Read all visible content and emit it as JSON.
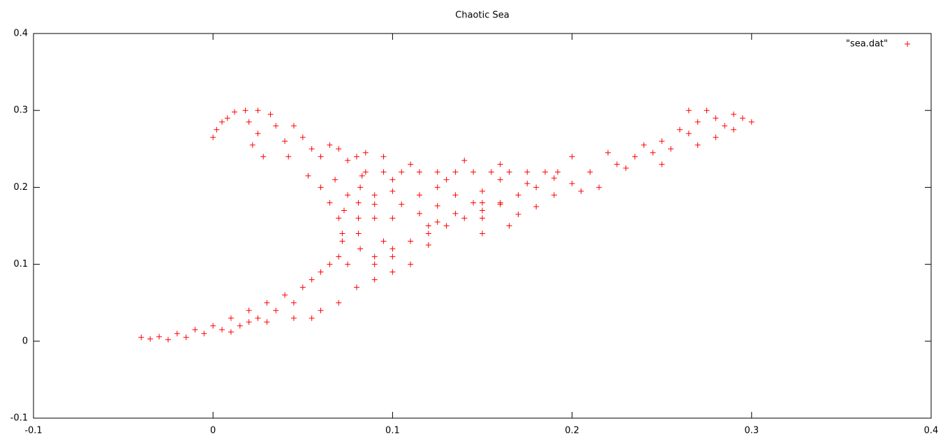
{
  "chart_data": {
    "type": "scatter",
    "title": "Chaotic Sea",
    "xlim": [
      -0.1,
      0.4
    ],
    "ylim": [
      -0.1,
      0.4
    ],
    "xticks": [
      -0.1,
      0,
      0.1,
      0.2,
      0.3,
      0.4
    ],
    "yticks": [
      -0.1,
      0,
      0.1,
      0.2,
      0.3,
      0.4
    ],
    "legend": "upper right",
    "marker": "+",
    "series": [
      {
        "name": "\"sea.dat\"",
        "color": "#ff0000",
        "x": [
          0.085,
          0.095,
          0.105,
          0.115,
          0.125,
          0.135,
          0.145,
          0.155,
          0.165,
          0.175,
          0.185,
          0.192,
          0.19,
          0.18,
          0.17,
          0.16,
          0.15,
          0.14,
          0.13,
          0.12,
          0.11,
          0.1,
          0.09,
          0.082,
          0.081,
          0.081,
          0.081,
          0.082,
          0.083,
          0.1,
          0.13,
          0.16,
          0.175,
          0.15,
          0.12,
          0.095,
          0.09,
          0.09,
          0.16,
          0.15,
          0.125,
          0.1,
          0.09,
          0.1,
          0.125,
          0.15,
          0.145,
          0.135,
          0.115,
          0.105,
          0.115,
          0.135,
          0.125,
          -0.04,
          -0.035,
          -0.03,
          -0.025,
          -0.02,
          -0.015,
          -0.01,
          -0.005,
          0,
          0.005,
          0.01,
          0.015,
          0.02,
          0.025,
          0.03,
          0.035,
          0.04,
          0.045,
          0.05,
          0.055,
          0.06,
          0.065,
          0.07,
          0.072,
          0.075,
          0.06,
          0.07,
          0.08,
          0.09,
          0.1,
          0.11,
          0.055,
          0.045,
          0.03,
          0.02,
          0.01,
          0,
          0.002,
          0.005,
          0.008,
          0.012,
          0.018,
          0.025,
          0.032,
          0.02,
          0.025,
          0.022,
          0.028,
          0.035,
          0.04,
          0.042,
          0.045,
          0.05,
          0.055,
          0.06,
          0.065,
          0.07,
          0.075,
          0.08,
          0.085,
          0.053,
          0.06,
          0.065,
          0.07,
          0.072,
          0.075,
          0.068,
          0.073,
          0.2,
          0.21,
          0.22,
          0.225,
          0.235,
          0.24,
          0.245,
          0.25,
          0.255,
          0.26,
          0.265,
          0.265,
          0.27,
          0.275,
          0.28,
          0.285,
          0.29,
          0.295,
          0.3,
          0.29,
          0.28,
          0.27,
          0.215,
          0.205,
          0.2,
          0.19,
          0.18,
          0.17,
          0.23,
          0.25,
          0.16,
          0.14,
          0.11,
          0.095,
          0.165,
          0.15,
          0.12,
          0.1,
          0.09
        ],
        "values": [
          0.22,
          0.22,
          0.22,
          0.22,
          0.22,
          0.22,
          0.22,
          0.22,
          0.22,
          0.22,
          0.22,
          0.22,
          0.212,
          0.2,
          0.19,
          0.18,
          0.17,
          0.16,
          0.15,
          0.14,
          0.13,
          0.12,
          0.11,
          0.12,
          0.14,
          0.16,
          0.18,
          0.2,
          0.215,
          0.21,
          0.21,
          0.21,
          0.205,
          0.18,
          0.15,
          0.13,
          0.16,
          0.19,
          0.178,
          0.195,
          0.2,
          0.195,
          0.178,
          0.16,
          0.155,
          0.16,
          0.18,
          0.19,
          0.19,
          0.178,
          0.166,
          0.166,
          0.176,
          0.005,
          0.003,
          0.006,
          0.002,
          0.01,
          0.005,
          0.015,
          0.01,
          0.02,
          0.015,
          0.03,
          0.02,
          0.04,
          0.03,
          0.05,
          0.04,
          0.06,
          0.05,
          0.07,
          0.08,
          0.09,
          0.1,
          0.11,
          0.13,
          0.1,
          0.04,
          0.05,
          0.07,
          0.08,
          0.09,
          0.1,
          0.03,
          0.03,
          0.025,
          0.025,
          0.012,
          0.265,
          0.275,
          0.285,
          0.29,
          0.298,
          0.3,
          0.3,
          0.295,
          0.285,
          0.27,
          0.255,
          0.24,
          0.28,
          0.26,
          0.24,
          0.28,
          0.265,
          0.25,
          0.24,
          0.255,
          0.25,
          0.235,
          0.24,
          0.245,
          0.215,
          0.2,
          0.18,
          0.16,
          0.14,
          0.19,
          0.21,
          0.17,
          0.24,
          0.22,
          0.245,
          0.23,
          0.24,
          0.255,
          0.245,
          0.26,
          0.25,
          0.275,
          0.27,
          0.3,
          0.285,
          0.3,
          0.29,
          0.28,
          0.295,
          0.29,
          0.285,
          0.275,
          0.265,
          0.255,
          0.2,
          0.195,
          0.205,
          0.19,
          0.175,
          0.165,
          0.225,
          0.23,
          0.23,
          0.235,
          0.23,
          0.24,
          0.15,
          0.14,
          0.125,
          0.11,
          0.1
        ]
      }
    ]
  }
}
